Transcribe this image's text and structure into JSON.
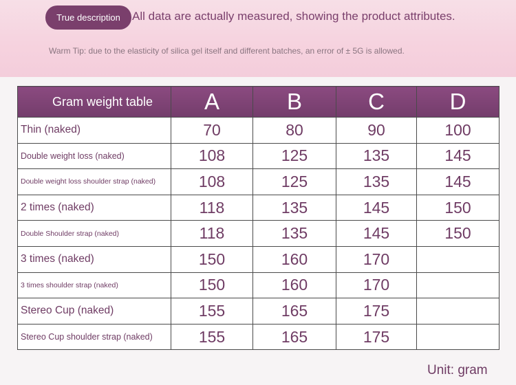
{
  "header": {
    "pill_label": "True description",
    "description": "All data are actually measured, showing the product attributes.",
    "tip": "Warm Tip: due to the elasticity of silica gel itself and different batches, an error of ± 5G is allowed."
  },
  "table": {
    "corner_label": "Gram weight table",
    "columns": [
      "A",
      "B",
      "C",
      "D"
    ],
    "rows": [
      {
        "label": "Thin (naked)",
        "values": [
          "70",
          "80",
          "90",
          "100"
        ]
      },
      {
        "label": "Double weight loss (naked)",
        "values": [
          "108",
          "125",
          "135",
          "145"
        ]
      },
      {
        "label": "Double weight loss shoulder strap (naked)",
        "values": [
          "108",
          "125",
          "135",
          "145"
        ]
      },
      {
        "label": "2 times (naked)",
        "values": [
          "118",
          "135",
          "145",
          "150"
        ]
      },
      {
        "label": "Double Shoulder strap (naked)",
        "values": [
          "118",
          "135",
          "145",
          "150"
        ]
      },
      {
        "label": "3 times (naked)",
        "values": [
          "150",
          "160",
          "170",
          ""
        ]
      },
      {
        "label": "3 times shoulder strap (naked)",
        "values": [
          "150",
          "160",
          "170",
          ""
        ]
      },
      {
        "label": "Stereo Cup (naked)",
        "values": [
          "155",
          "165",
          "175",
          ""
        ]
      },
      {
        "label": "Stereo Cup shoulder strap (naked)",
        "values": [
          "155",
          "165",
          "175",
          ""
        ]
      }
    ]
  },
  "footer": {
    "unit": "Unit: gram"
  },
  "colors": {
    "accent": "#7a3f6c",
    "header_band": "#f6d3df",
    "table_header": "#7d4373"
  }
}
